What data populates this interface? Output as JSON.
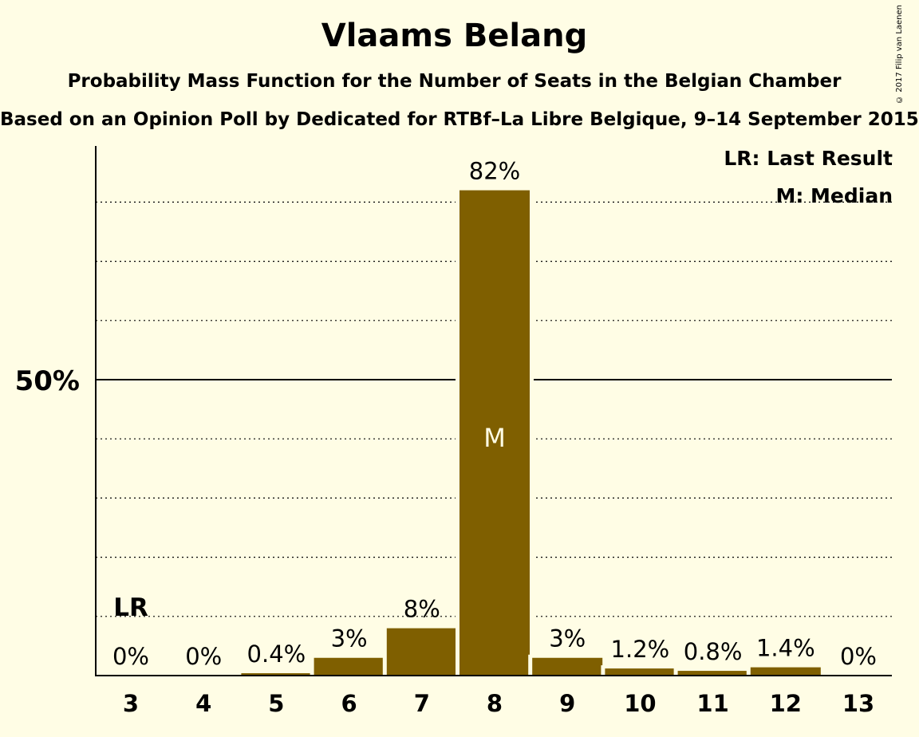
{
  "title": "Vlaams Belang",
  "subtitle": "Probability Mass Function for the Number of Seats in the Belgian Chamber",
  "subtitle2": "Based on an Opinion Poll by Dedicated for RTBf–La Libre Belgique, 9–14 September 2015",
  "copyright": "© 2017 Filip van Laenen",
  "legend": {
    "last_result": "LR: Last Result",
    "median": "M: Median"
  },
  "colors": {
    "background": "#FFFDE5",
    "bar": "#7F5F00",
    "median_text": "#FFFDE5"
  },
  "chart_data": {
    "type": "bar",
    "categories": [
      3,
      4,
      5,
      6,
      7,
      8,
      9,
      10,
      11,
      12,
      13
    ],
    "values": [
      0,
      0,
      0.4,
      3,
      8,
      82,
      3,
      1.2,
      0.8,
      1.4,
      0
    ],
    "labels": [
      "0%",
      "0%",
      "0.4%",
      "3%",
      "8%",
      "82%",
      "3%",
      "1.2%",
      "0.8%",
      "1.4%",
      "0%"
    ],
    "ylim": [
      0,
      90
    ],
    "yticks": [
      50
    ],
    "ytick_labels": [
      "50%"
    ],
    "gridlines": [
      10,
      20,
      30,
      40,
      60,
      70,
      80
    ],
    "last_result": 3,
    "last_result_label": "LR",
    "median": 8,
    "median_label": "M"
  }
}
